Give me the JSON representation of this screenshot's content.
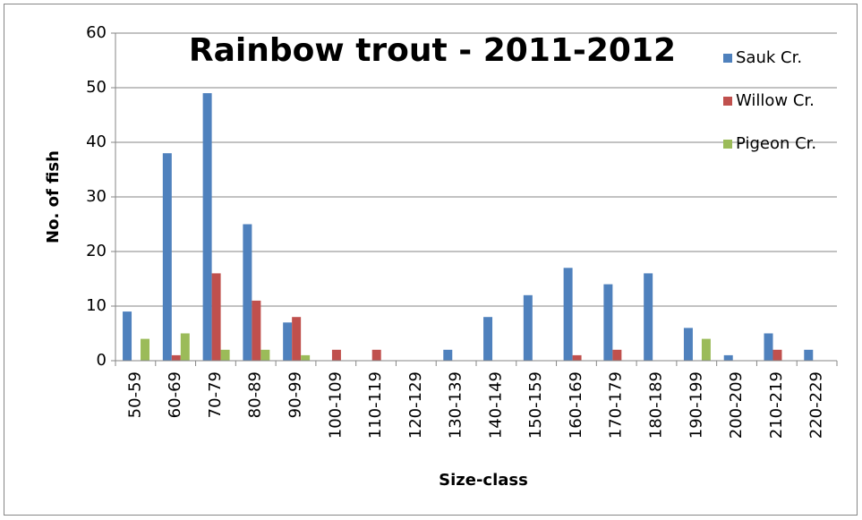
{
  "chart_data": {
    "type": "bar",
    "title": "Rainbow trout - 2011-2012",
    "x_label": "Size-class",
    "y_label": "No. of fish",
    "categories": [
      "50-59",
      "60-69",
      "70-79",
      "80-89",
      "90-99",
      "100-109",
      "110-119",
      "120-129",
      "130-139",
      "140-149",
      "150-159",
      "160-169",
      "170-179",
      "180-189",
      "190-199",
      "200-209",
      "210-219",
      "220-229"
    ],
    "series": [
      {
        "name": "Sauk Cr.",
        "color": "#4f81bd",
        "values": [
          9,
          38,
          49,
          25,
          7,
          0,
          0,
          0,
          2,
          8,
          12,
          17,
          14,
          16,
          6,
          1,
          5,
          2
        ]
      },
      {
        "name": "Willow Cr.",
        "color": "#c0504d",
        "values": [
          0,
          1,
          16,
          11,
          8,
          2,
          2,
          0,
          0,
          0,
          0,
          1,
          2,
          0,
          0,
          0,
          2,
          0
        ]
      },
      {
        "name": "Pigeon Cr.",
        "color": "#9bbb59",
        "values": [
          4,
          5,
          2,
          2,
          1,
          0,
          0,
          0,
          0,
          0,
          0,
          0,
          0,
          0,
          4,
          0,
          0,
          0
        ]
      }
    ],
    "ylim": [
      0,
      60
    ],
    "yticks": [
      0,
      10,
      20,
      30,
      40,
      50,
      60
    ],
    "grid": true,
    "legend": "top-right"
  }
}
